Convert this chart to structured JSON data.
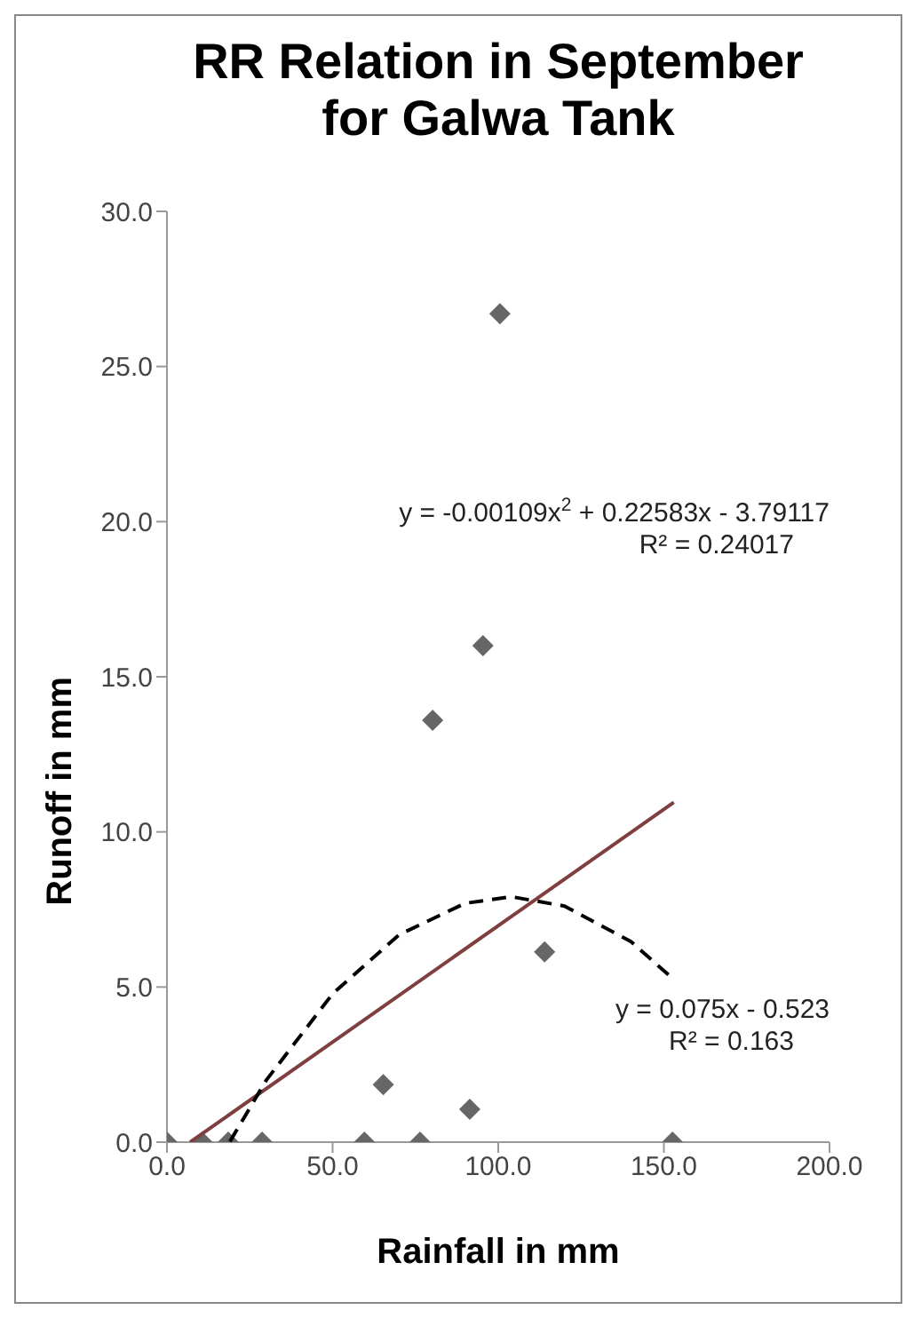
{
  "chart_data": {
    "type": "scatter",
    "title": "RR Relation in September for Galwa Tank",
    "xlabel": "Rainfall in mm",
    "ylabel": "Runoff in mm",
    "xlim": [
      0,
      200
    ],
    "xticks": [
      {
        "value": 0,
        "label": "0.0"
      },
      {
        "value": 50,
        "label": "50.0"
      },
      {
        "value": 100,
        "label": "100.0"
      },
      {
        "value": 150,
        "label": "150.0"
      },
      {
        "value": 200,
        "label": "200.0"
      }
    ],
    "ylim": [
      0,
      30
    ],
    "yticks": [
      {
        "value": 0,
        "label": "0.0"
      },
      {
        "value": 5,
        "label": "5.0"
      },
      {
        "value": 10,
        "label": "10.0"
      },
      {
        "value": 15,
        "label": "15.0"
      },
      {
        "value": 20,
        "label": "20.0"
      },
      {
        "value": 25,
        "label": "25.0"
      },
      {
        "value": 30,
        "label": "30.0"
      }
    ],
    "grid": false,
    "legend": false,
    "marker": "diamond",
    "series": [
      {
        "color": "#666666",
        "x": [
          0,
          10.6,
          18.5,
          28.7,
          59.6,
          76.4,
          152.6,
          65.3,
          91.4,
          114,
          80.2,
          95.4,
          100.5
        ],
        "values": [
          0,
          0,
          0,
          0,
          0,
          0,
          0,
          1.85,
          1.06,
          6.13,
          13.6,
          16.0,
          26.7
        ]
      },
      {
        "type": "line",
        "color": "#7f3f3f",
        "marker": "none",
        "line_style": "solid",
        "x": [
          7,
          153
        ],
        "values": [
          0,
          10.95
        ]
      },
      {
        "type": "line",
        "color": "#000000",
        "marker": "none",
        "line_style": "dashed",
        "x": [
          19,
          30,
          50,
          70,
          90,
          104,
          120,
          140,
          153
        ],
        "values": [
          0.02,
          2.0,
          4.78,
          6.68,
          7.7,
          7.91,
          7.61,
          6.47,
          5.24
        ]
      }
    ],
    "annotations": [
      "y = -0.00109x$^{2}$ + 0.22583x - 3.79117",
      "R² = 0.24017",
      "y = 0.075x - 0.523",
      "R² = 0.163"
    ]
  }
}
